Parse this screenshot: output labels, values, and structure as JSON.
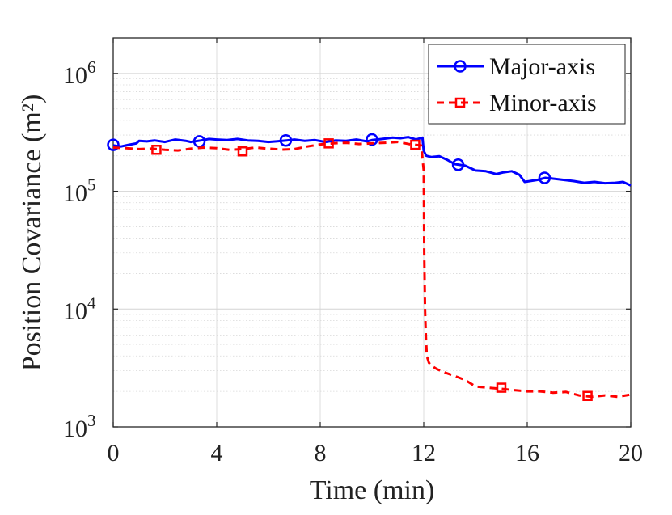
{
  "chart_data": {
    "type": "line",
    "title": "",
    "xlabel": "Time (min)",
    "ylabel": "Position Covariance (m²)",
    "xlim": [
      0,
      20
    ],
    "ylim": [
      1000,
      2000000
    ],
    "yscale": "log",
    "grid": true,
    "legend_position": "top-right",
    "xticks": [
      0,
      4,
      8,
      12,
      16,
      20
    ],
    "xtick_labels": [
      "0",
      "4",
      "8",
      "12",
      "16",
      "20"
    ],
    "yticks": [
      1000,
      10000,
      100000,
      1000000
    ],
    "ytick_labels": [
      {
        "base": "10",
        "exp": "3"
      },
      {
        "base": "10",
        "exp": "4"
      },
      {
        "base": "10",
        "exp": "5"
      },
      {
        "base": "10",
        "exp": "6"
      }
    ],
    "series": [
      {
        "name": "Major-axis",
        "color": "#0000ff",
        "line_style": "solid",
        "marker": "circle",
        "x": [
          0,
          0.3,
          0.6,
          0.9,
          1.0,
          1.3,
          1.6,
          2.0,
          2.4,
          2.8,
          3.0,
          3.4,
          3.7,
          4.0,
          4.4,
          4.8,
          5.2,
          5.6,
          6.0,
          6.3,
          6.7,
          7.0,
          7.4,
          7.8,
          8.2,
          8.6,
          9.0,
          9.4,
          9.8,
          10.0,
          10.4,
          10.8,
          11.1,
          11.4,
          11.7,
          11.95,
          12.0,
          12.1,
          12.3,
          12.6,
          12.9,
          13.2,
          13.6,
          14.0,
          14.4,
          14.8,
          15.1,
          15.4,
          15.7,
          15.9,
          16.1,
          16.4,
          16.7,
          17.0,
          17.4,
          17.8,
          18.2,
          18.6,
          19.0,
          19.4,
          19.7,
          20.0
        ],
        "y": [
          245000,
          240000,
          248000,
          255000,
          268000,
          265000,
          270000,
          262000,
          275000,
          268000,
          262000,
          270000,
          278000,
          275000,
          272000,
          278000,
          270000,
          268000,
          262000,
          265000,
          270000,
          275000,
          268000,
          272000,
          262000,
          270000,
          268000,
          275000,
          265000,
          272000,
          278000,
          285000,
          282000,
          288000,
          275000,
          285000,
          220000,
          200000,
          195000,
          198000,
          185000,
          170000,
          165000,
          150000,
          148000,
          140000,
          145000,
          148000,
          138000,
          120000,
          122000,
          125000,
          130000,
          128000,
          125000,
          122000,
          118000,
          120000,
          117000,
          118000,
          120000,
          112000
        ],
        "marker_x": [
          0,
          3.33,
          6.67,
          10.0,
          13.33,
          16.67
        ],
        "marker_y": [
          248000,
          265000,
          270000,
          275000,
          168000,
          130000
        ]
      },
      {
        "name": "Minor-axis",
        "color": "#ff0000",
        "line_style": "dashed",
        "marker": "square",
        "x": [
          0,
          0.5,
          1.0,
          1.5,
          2.0,
          2.5,
          3.0,
          3.5,
          4.0,
          4.5,
          5.0,
          5.5,
          6.0,
          6.5,
          7.0,
          7.5,
          8.0,
          8.5,
          9.0,
          9.5,
          10.0,
          10.5,
          11.0,
          11.5,
          11.9,
          12.0,
          12.02,
          12.05,
          12.08,
          12.12,
          12.2,
          12.3,
          12.5,
          12.8,
          13.2,
          13.6,
          14.0,
          14.5,
          15.0,
          15.5,
          16.0,
          16.5,
          17.0,
          17.5,
          18.0,
          18.5,
          19.0,
          19.5,
          20.0
        ],
        "y": [
          235000,
          232000,
          228000,
          230000,
          225000,
          222000,
          230000,
          235000,
          232000,
          225000,
          228000,
          235000,
          230000,
          226000,
          228000,
          240000,
          250000,
          255000,
          258000,
          252000,
          255000,
          258000,
          262000,
          250000,
          245000,
          150000,
          30000,
          10000,
          6000,
          4000,
          3500,
          3300,
          3100,
          2900,
          2700,
          2500,
          2200,
          2150,
          2100,
          2050,
          2000,
          2000,
          1950,
          1980,
          1850,
          1800,
          1850,
          1800,
          1880
        ],
        "marker_x": [
          1.67,
          5.0,
          8.33,
          11.67,
          15.0,
          18.33
        ],
        "marker_y": [
          225000,
          218000,
          255000,
          248000,
          2150,
          1830
        ]
      }
    ]
  }
}
